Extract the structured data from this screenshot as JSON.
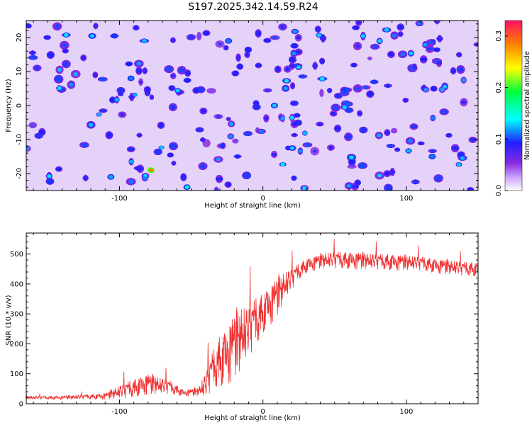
{
  "title": "S197.2025.342.14.59.R24",
  "chart_data": [
    {
      "type": "heatmap",
      "xlabel": "Height of straight line (km)",
      "ylabel": "Frequency (Hz)",
      "xlim": [
        -165,
        150
      ],
      "ylim": [
        -25,
        25
      ],
      "x_ticks": [
        -100,
        0,
        100
      ],
      "y_ticks": [
        -20,
        -10,
        0,
        10,
        20
      ],
      "colorbar": {
        "label": "Normalized spectral amplitude",
        "range": [
          0,
          0.33
        ],
        "ticks": [
          0.0,
          0.1,
          0.2,
          0.3
        ],
        "colors": [
          "#ffffff",
          "#8a2be2",
          "#2020ff",
          "#00ffff",
          "#00ff00",
          "#ffff00",
          "#ff8000",
          "#ff1060"
        ]
      },
      "background_level": 0.02,
      "blob_level_typical": 0.05,
      "hot_spots": [
        {
          "x": -78,
          "y": -19,
          "value": 0.25
        },
        {
          "x": -53,
          "y": -24,
          "value": 0.12
        },
        {
          "x": 8,
          "y": 0,
          "value": 0.1
        },
        {
          "x": -92,
          "y": 8,
          "value": 0.08
        },
        {
          "x": -106,
          "y": -21,
          "value": 0.09
        },
        {
          "x": 118,
          "y": -15,
          "value": 0.08
        },
        {
          "x": -24,
          "y": 19,
          "value": 0.08
        }
      ]
    },
    {
      "type": "line",
      "xlabel": "Height of straight line (km)",
      "ylabel": "SNR (10 * v/v)",
      "xlim": [
        -165,
        150
      ],
      "ylim": [
        0,
        570
      ],
      "x_ticks": [
        -100,
        0,
        100
      ],
      "y_ticks": [
        0,
        100,
        200,
        300,
        400,
        500
      ],
      "grid": false,
      "series": [
        {
          "color": "#ee3030",
          "x": [
            -165,
            -140,
            -110,
            -95,
            -80,
            -65,
            -55,
            -45,
            -40,
            -35,
            -30,
            -25,
            -20,
            -15,
            -10,
            -5,
            0,
            5,
            10,
            15,
            20,
            25,
            30,
            40,
            50,
            60,
            70,
            80,
            90,
            100,
            110,
            120,
            130,
            140,
            150
          ],
          "mean": [
            20,
            20,
            25,
            45,
            65,
            55,
            35,
            40,
            60,
            110,
            140,
            160,
            190,
            215,
            240,
            270,
            300,
            330,
            355,
            390,
            415,
            440,
            460,
            475,
            480,
            478,
            476,
            474,
            472,
            470,
            468,
            460,
            455,
            450,
            448
          ],
          "noise": [
            6,
            6,
            10,
            30,
            35,
            25,
            10,
            15,
            45,
            70,
            90,
            100,
            110,
            110,
            90,
            90,
            70,
            70,
            65,
            50,
            40,
            30,
            25,
            25,
            30,
            30,
            28,
            28,
            28,
            25,
            25,
            25,
            25,
            25,
            25
          ]
        }
      ]
    }
  ]
}
